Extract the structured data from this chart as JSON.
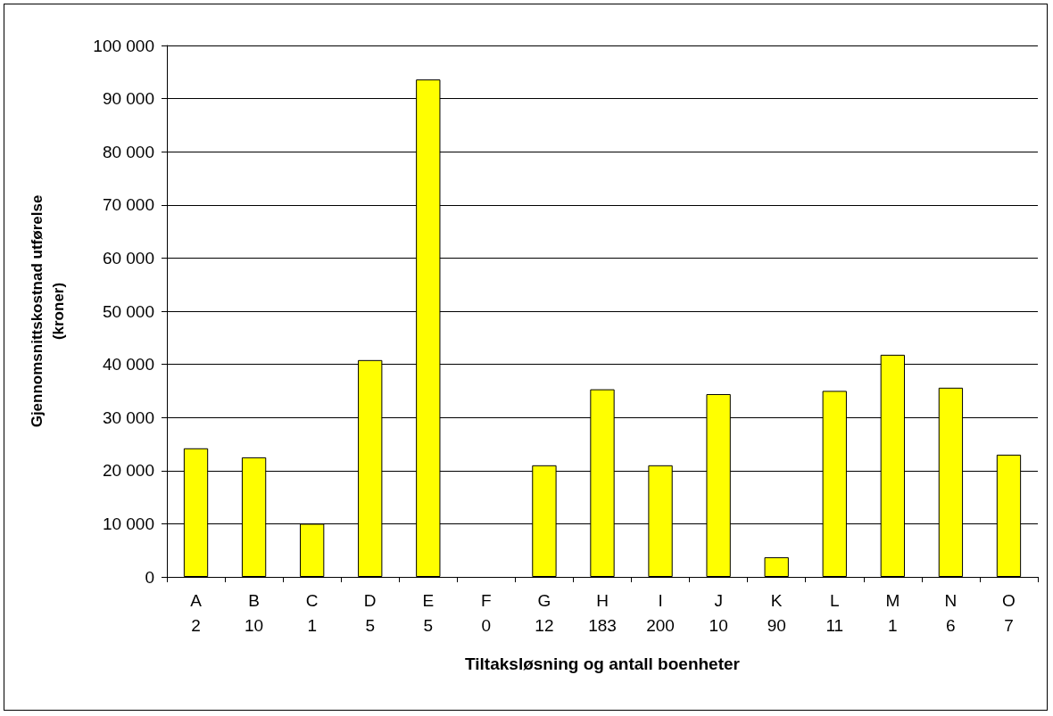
{
  "chart_data": {
    "type": "bar",
    "xlabel": "Tiltaksløsning og antall boenheter",
    "ylabel": "Gjennomsnittskostnad utførelse\n(kroner)",
    "categories": [
      "A\n2",
      "B\n10",
      "C\n1",
      "D\n5",
      "E\n5",
      "F\n0",
      "G\n12",
      "H\n183",
      "I\n200",
      "J\n10",
      "K\n90",
      "L\n11",
      "M\n1",
      "N\n6",
      "O\n7"
    ],
    "values": [
      24200,
      22500,
      10000,
      40800,
      93600,
      0,
      21000,
      35300,
      21000,
      34400,
      3700,
      35000,
      41800,
      35600,
      23000
    ],
    "color": "#ffff00",
    "ylim": [
      0,
      100000
    ],
    "yticks": [
      {
        "value": 0,
        "label": "0"
      },
      {
        "value": 10000,
        "label": "10 000"
      },
      {
        "value": 20000,
        "label": "20 000"
      },
      {
        "value": 30000,
        "label": "30 000"
      },
      {
        "value": 40000,
        "label": "40 000"
      },
      {
        "value": 50000,
        "label": "50 000"
      },
      {
        "value": 60000,
        "label": "60 000"
      },
      {
        "value": 70000,
        "label": "70 000"
      },
      {
        "value": 80000,
        "label": "80 000"
      },
      {
        "value": 90000,
        "label": "90 000"
      },
      {
        "value": 100000,
        "label": "100 000"
      }
    ],
    "grid": "y"
  }
}
